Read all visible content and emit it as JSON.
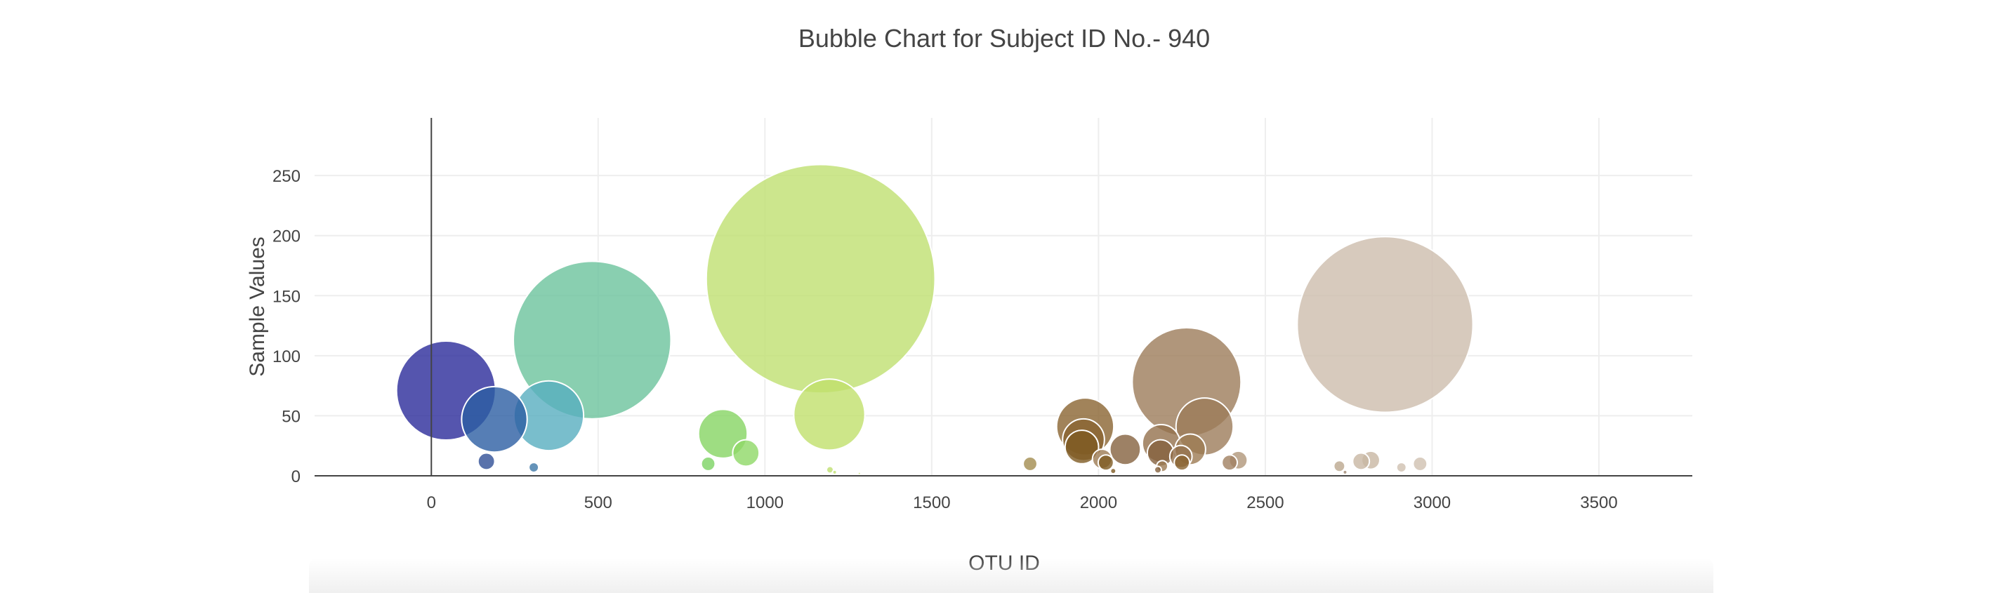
{
  "chart_data": {
    "type": "scatter",
    "title": "Bubble Chart for Subject ID No.- 940",
    "xlabel": "OTU ID",
    "ylabel": "Sample Values",
    "xlim": [
      -350,
      3780
    ],
    "ylim": [
      0,
      298
    ],
    "xticks": [
      0,
      500,
      1000,
      1500,
      2000,
      2500,
      3000,
      3500
    ],
    "yticks": [
      0,
      50,
      100,
      150,
      200,
      250
    ],
    "grid": true,
    "marker_size_encodes": "Sample Values",
    "colorscale": "Earth",
    "points": [
      {
        "otu_id": 44,
        "value": 71,
        "color": "#2a2a9a"
      },
      {
        "otu_id": 165,
        "value": 12,
        "color": "#2f4f96"
      },
      {
        "otu_id": 189,
        "value": 47,
        "color": "#2c5ea2"
      },
      {
        "otu_id": 307,
        "value": 7,
        "color": "#3f78a8"
      },
      {
        "otu_id": 352,
        "value": 50,
        "color": "#58aebf"
      },
      {
        "otu_id": 482,
        "value": 113,
        "color": "#6cc39c"
      },
      {
        "otu_id": 830,
        "value": 10,
        "color": "#7cd363"
      },
      {
        "otu_id": 874,
        "value": 35,
        "color": "#86d563"
      },
      {
        "otu_id": 943,
        "value": 19,
        "color": "#8ed866"
      },
      {
        "otu_id": 1167,
        "value": 164,
        "color": "#bfe070"
      },
      {
        "otu_id": 1193,
        "value": 51,
        "color": "#c0e06c"
      },
      {
        "otu_id": 1195,
        "value": 5,
        "color": "#bfe070"
      },
      {
        "otu_id": 1795,
        "value": 10,
        "color": "#a38c4f"
      },
      {
        "otu_id": 1960,
        "value": 41,
        "color": "#8a6431"
      },
      {
        "otu_id": 1955,
        "value": 30,
        "color": "#8a6431"
      },
      {
        "otu_id": 1950,
        "value": 24,
        "color": "#7e5a22"
      },
      {
        "otu_id": 2011,
        "value": 14,
        "color": "#9c7a52"
      },
      {
        "otu_id": 2022,
        "value": 11,
        "color": "#7e5a22"
      },
      {
        "otu_id": 2044,
        "value": 4,
        "color": "#7e5a22"
      },
      {
        "otu_id": 2080,
        "value": 22,
        "color": "#84623f"
      },
      {
        "otu_id": 2188,
        "value": 27,
        "color": "#93704c"
      },
      {
        "otu_id": 2186,
        "value": 19,
        "color": "#84623f"
      },
      {
        "otu_id": 2178,
        "value": 5,
        "color": "#84623f"
      },
      {
        "otu_id": 2191,
        "value": 8,
        "color": "#9c7a52"
      },
      {
        "otu_id": 2264,
        "value": 78,
        "color": "#9c7c5a"
      },
      {
        "otu_id": 2247,
        "value": 16,
        "color": "#93704c"
      },
      {
        "otu_id": 2250,
        "value": 11,
        "color": "#8a6431"
      },
      {
        "otu_id": 2275,
        "value": 22,
        "color": "#9c7a52"
      },
      {
        "otu_id": 2318,
        "value": 41,
        "color": "#9c7c5a"
      },
      {
        "otu_id": 2393,
        "value": 11,
        "color": "#a08060"
      },
      {
        "otu_id": 2419,
        "value": 13,
        "color": "#b09679"
      },
      {
        "otu_id": 2722,
        "value": 8,
        "color": "#bba78f"
      },
      {
        "otu_id": 2739,
        "value": 3,
        "color": "#9e8670"
      },
      {
        "otu_id": 2787,
        "value": 12,
        "color": "#c8b6a3"
      },
      {
        "otu_id": 2816,
        "value": 13,
        "color": "#c8b6a3"
      },
      {
        "otu_id": 2859,
        "value": 126,
        "color": "#cdbdac"
      },
      {
        "otu_id": 2908,
        "value": 7,
        "color": "#d0c0b0"
      },
      {
        "otu_id": 2964,
        "value": 10,
        "color": "#d0c0b0"
      },
      {
        "otu_id": 1283,
        "value": 2,
        "color": "#c8e37c"
      },
      {
        "otu_id": 1209,
        "value": 3,
        "color": "#bfe070"
      }
    ]
  }
}
